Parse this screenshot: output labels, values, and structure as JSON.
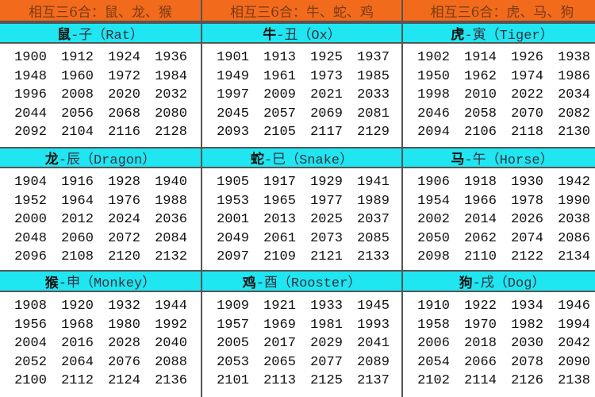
{
  "groups": [
    {
      "title": "相互三6合：鼠、龙、猴"
    },
    {
      "title": "相互三6合：牛、蛇、鸡"
    },
    {
      "title": "相互三6合：虎、马、狗"
    }
  ],
  "animals": [
    {
      "cn": "鼠",
      "rest": "-子（Rat）",
      "years": [
        1900,
        1912,
        1924,
        1936,
        1948,
        1960,
        1972,
        1984,
        1996,
        2008,
        2020,
        2032,
        2044,
        2056,
        2068,
        2080,
        2092,
        2104,
        2116,
        2128
      ]
    },
    {
      "cn": "牛",
      "rest": "-丑（Ox）",
      "years": [
        1901,
        1913,
        1925,
        1937,
        1949,
        1961,
        1973,
        1985,
        1997,
        2009,
        2021,
        2033,
        2045,
        2057,
        2069,
        2081,
        2093,
        2105,
        2117,
        2129
      ]
    },
    {
      "cn": "虎",
      "rest": "-寅（Tiger）",
      "years": [
        1902,
        1914,
        1926,
        1938,
        1950,
        1962,
        1974,
        1986,
        1998,
        2010,
        2022,
        2034,
        2046,
        2058,
        2070,
        2082,
        2094,
        2106,
        2118,
        2130
      ]
    },
    {
      "cn": "龙",
      "rest": "-辰（Dragon）",
      "years": [
        1904,
        1916,
        1928,
        1940,
        1952,
        1964,
        1976,
        1988,
        2000,
        2012,
        2024,
        2036,
        2048,
        2060,
        2072,
        2084,
        2096,
        2108,
        2120,
        2132
      ]
    },
    {
      "cn": "蛇",
      "rest": "-巳（Snake）",
      "years": [
        1905,
        1917,
        1929,
        1941,
        1953,
        1965,
        1977,
        1989,
        2001,
        2013,
        2025,
        2037,
        2049,
        2061,
        2073,
        2085,
        2097,
        2109,
        2121,
        2133
      ]
    },
    {
      "cn": "马",
      "rest": "-午（Horse）",
      "years": [
        1906,
        1918,
        1930,
        1942,
        1954,
        1966,
        1978,
        1990,
        2002,
        2014,
        2026,
        2038,
        2050,
        2062,
        2074,
        2086,
        2098,
        2110,
        2122,
        2134
      ]
    },
    {
      "cn": "猴",
      "rest": "-申（Monkey）",
      "years": [
        1908,
        1920,
        1932,
        1944,
        1956,
        1968,
        1980,
        1992,
        2004,
        2016,
        2028,
        2040,
        2052,
        2064,
        2076,
        2088,
        2100,
        2112,
        2124,
        2136
      ]
    },
    {
      "cn": "鸡",
      "rest": "-酉（Rooster）",
      "years": [
        1909,
        1921,
        1933,
        1945,
        1957,
        1969,
        1981,
        1993,
        2005,
        2017,
        2029,
        2041,
        2053,
        2065,
        2077,
        2089,
        2101,
        2113,
        2125,
        2137
      ]
    },
    {
      "cn": "狗",
      "rest": "-戌（Dog）",
      "years": [
        1910,
        1922,
        1934,
        1946,
        1958,
        1970,
        1982,
        1994,
        2006,
        2018,
        2030,
        2042,
        2054,
        2066,
        2078,
        2090,
        2102,
        2114,
        2126,
        2138
      ]
    }
  ],
  "colors": {
    "group_header": "#f26b1d",
    "animal_header": "#1fe6f0"
  }
}
